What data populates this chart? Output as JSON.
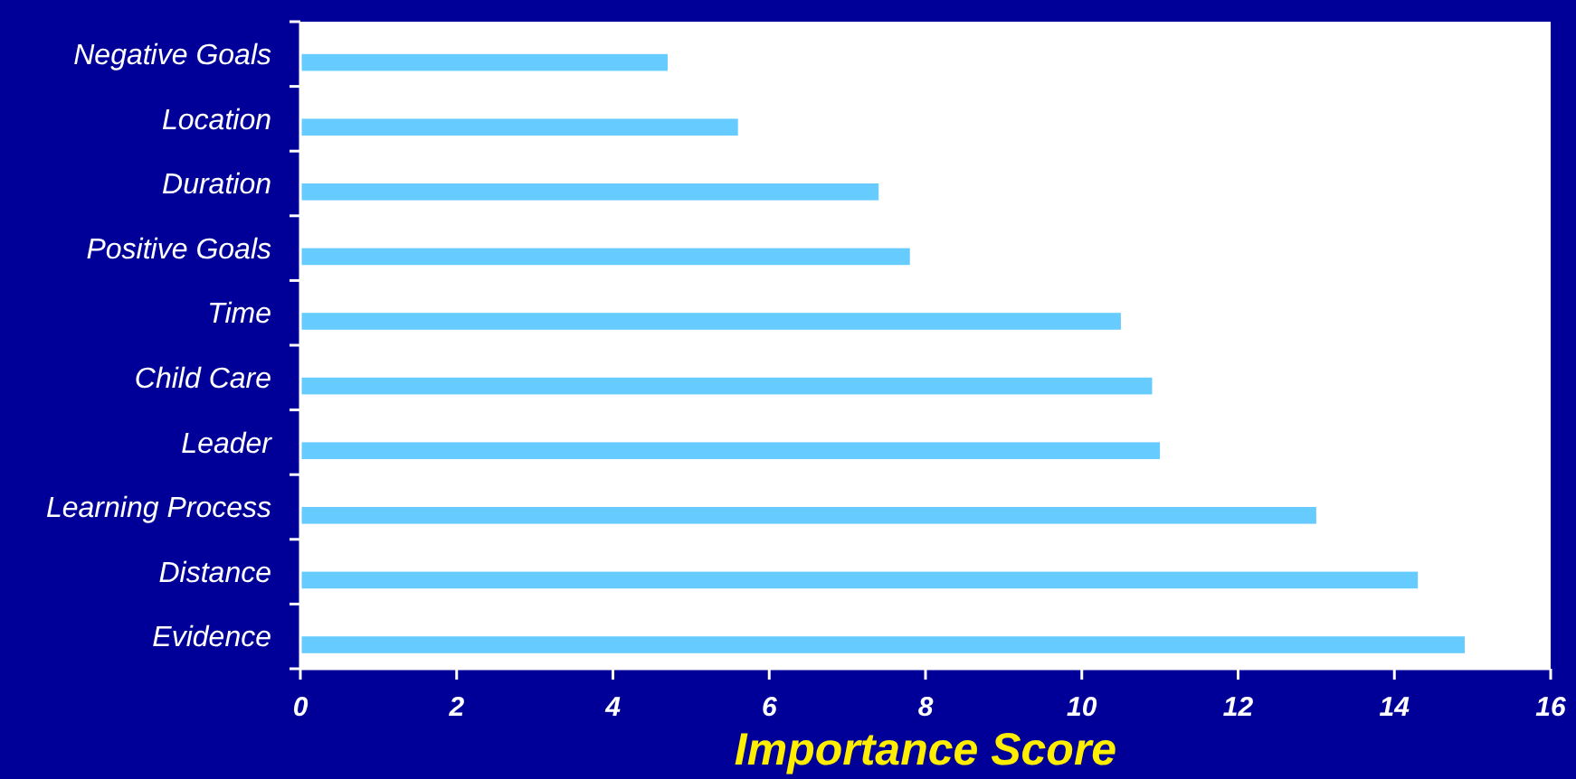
{
  "chart_data": {
    "type": "bar",
    "orientation": "horizontal",
    "xlabel": "Importance Score",
    "categories": [
      "Negative Goals",
      "Location",
      "Duration",
      "Positive Goals",
      "Time",
      "Child Care",
      "Leader",
      "Learning Process",
      "Distance",
      "Evidence"
    ],
    "values": [
      4.7,
      5.6,
      7.4,
      7.8,
      10.5,
      10.9,
      11.0,
      13.0,
      14.3,
      14.9
    ],
    "color": "#66ccff",
    "xlim": [
      0,
      16
    ],
    "xticks": [
      0,
      2,
      4,
      6,
      8,
      10,
      12,
      14,
      16
    ],
    "grid": false
  }
}
